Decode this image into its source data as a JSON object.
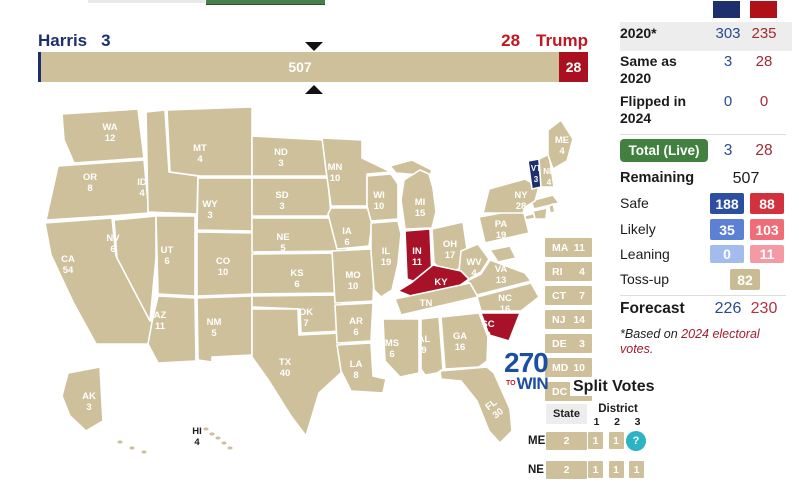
{
  "colors": {
    "dem_navy": "#1e2f6d",
    "rep_red": "#b01118",
    "tossup_tan": "#cdc09a",
    "state_red": "#a81228",
    "total_green": "#41803f",
    "help_teal": "#2cb3c4"
  },
  "top_bar": {
    "harris_label": "Harris",
    "harris_votes": "3",
    "trump_votes": "28",
    "trump_label": "Trump",
    "tossup_value": "507",
    "rep_value": "28"
  },
  "scoreboard": {
    "row_2020": {
      "label": "2020*",
      "dem": "303",
      "rep": "235"
    },
    "row_same": {
      "label": "Same as 2020",
      "dem": "3",
      "rep": "28"
    },
    "row_flipped": {
      "label": "Flipped in 2024",
      "dem": "0",
      "rep": "0"
    },
    "row_total": {
      "label": "Total (Live)",
      "dem": "3",
      "rep": "28"
    },
    "row_remaining": {
      "label": "Remaining",
      "value": "507"
    },
    "row_safe": {
      "label": "Safe",
      "dem": "188",
      "rep": "88"
    },
    "row_likely": {
      "label": "Likely",
      "dem": "35",
      "rep": "103"
    },
    "row_leaning": {
      "label": "Leaning",
      "dem": "0",
      "rep": "11"
    },
    "row_tossup": {
      "label": "Toss-up",
      "value": "82"
    },
    "row_forecast": {
      "label": "Forecast",
      "dem": "226",
      "rep": "230"
    },
    "footnote_prefix": "*Based on ",
    "footnote_link": "2024 electoral votes."
  },
  "east_badges": [
    {
      "abbr": "MA",
      "ev": "11"
    },
    {
      "abbr": "RI",
      "ev": "4"
    },
    {
      "abbr": "CT",
      "ev": "7"
    },
    {
      "abbr": "NJ",
      "ev": "14"
    },
    {
      "abbr": "DE",
      "ev": "3"
    },
    {
      "abbr": "MD",
      "ev": "10"
    },
    {
      "abbr": "DC",
      "ev": ""
    }
  ],
  "split_votes": {
    "title": "Split Votes",
    "state_header": "State",
    "district_header": "District",
    "district_columns": [
      "1",
      "2",
      "3"
    ],
    "rows": [
      {
        "state": "ME",
        "statewide": "2",
        "districts": [
          "1",
          "1",
          "?"
        ]
      },
      {
        "state": "NE",
        "statewide": "2",
        "districts": [
          "1",
          "1",
          "1"
        ]
      }
    ]
  },
  "logo": {
    "num": "270",
    "to": "TO",
    "win": "WIN"
  },
  "map_states": [
    {
      "abbr": "WA",
      "ev": "12",
      "status": "tossup"
    },
    {
      "abbr": "OR",
      "ev": "8",
      "status": "tossup"
    },
    {
      "abbr": "CA",
      "ev": "54",
      "status": "tossup"
    },
    {
      "abbr": "NV",
      "ev": "6",
      "status": "tossup"
    },
    {
      "abbr": "ID",
      "ev": "4",
      "status": "tossup"
    },
    {
      "abbr": "MT",
      "ev": "4",
      "status": "tossup"
    },
    {
      "abbr": "WY",
      "ev": "3",
      "status": "tossup"
    },
    {
      "abbr": "UT",
      "ev": "6",
      "status": "tossup"
    },
    {
      "abbr": "CO",
      "ev": "10",
      "status": "tossup"
    },
    {
      "abbr": "AZ",
      "ev": "11",
      "status": "tossup"
    },
    {
      "abbr": "NM",
      "ev": "5",
      "status": "tossup"
    },
    {
      "abbr": "ND",
      "ev": "3",
      "status": "tossup"
    },
    {
      "abbr": "SD",
      "ev": "3",
      "status": "tossup"
    },
    {
      "abbr": "NE",
      "ev": "5",
      "status": "tossup"
    },
    {
      "abbr": "KS",
      "ev": "6",
      "status": "tossup"
    },
    {
      "abbr": "OK",
      "ev": "7",
      "status": "tossup"
    },
    {
      "abbr": "TX",
      "ev": "40",
      "status": "tossup"
    },
    {
      "abbr": "MN",
      "ev": "10",
      "status": "tossup"
    },
    {
      "abbr": "IA",
      "ev": "6",
      "status": "tossup"
    },
    {
      "abbr": "MO",
      "ev": "10",
      "status": "tossup"
    },
    {
      "abbr": "AR",
      "ev": "6",
      "status": "tossup"
    },
    {
      "abbr": "LA",
      "ev": "8",
      "status": "tossup"
    },
    {
      "abbr": "WI",
      "ev": "10",
      "status": "tossup"
    },
    {
      "abbr": "IL",
      "ev": "19",
      "status": "tossup"
    },
    {
      "abbr": "MI",
      "ev": "15",
      "status": "tossup"
    },
    {
      "abbr": "IN",
      "ev": "11",
      "status": "rep"
    },
    {
      "abbr": "OH",
      "ev": "17",
      "status": "tossup"
    },
    {
      "abbr": "WV",
      "ev": "4",
      "status": "tossup"
    },
    {
      "abbr": "VA",
      "ev": "13",
      "status": "tossup"
    },
    {
      "abbr": "KY",
      "ev": "8",
      "status": "rep"
    },
    {
      "abbr": "NC",
      "ev": "16",
      "status": "tossup"
    },
    {
      "abbr": "TN",
      "ev": "11",
      "status": "tossup"
    },
    {
      "abbr": "SC",
      "ev": "9",
      "status": "rep"
    },
    {
      "abbr": "MS",
      "ev": "6",
      "status": "tossup"
    },
    {
      "abbr": "AL",
      "ev": "9",
      "status": "tossup"
    },
    {
      "abbr": "GA",
      "ev": "16",
      "status": "tossup"
    },
    {
      "abbr": "FL",
      "ev": "30",
      "status": "tossup"
    },
    {
      "abbr": "PA",
      "ev": "19",
      "status": "tossup"
    },
    {
      "abbr": "NY",
      "ev": "28",
      "status": "tossup"
    },
    {
      "abbr": "VT",
      "ev": "3",
      "status": "dem"
    },
    {
      "abbr": "NH",
      "ev": "4",
      "status": "tossup"
    },
    {
      "abbr": "ME",
      "ev": "4",
      "status": "tossup"
    },
    {
      "abbr": "AK",
      "ev": "3",
      "status": "tossup"
    },
    {
      "abbr": "HI",
      "ev": "4",
      "status": "tossup"
    }
  ]
}
